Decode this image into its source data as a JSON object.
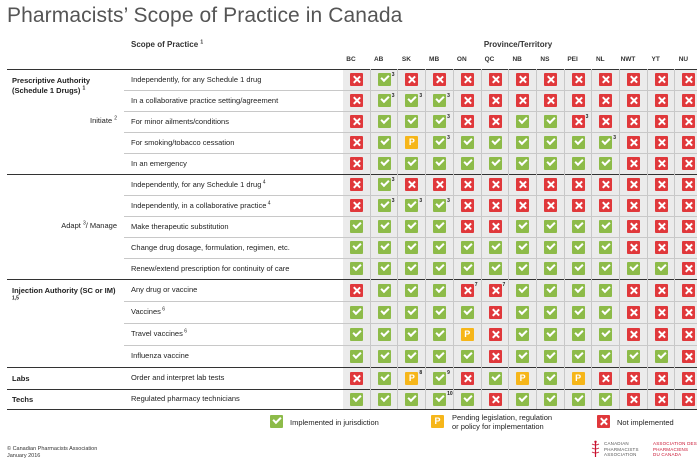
{
  "title": "Pharmacists’ Scope of Practice in Canada",
  "scope_header": "Scope of Practice",
  "scope_header_fn": "1",
  "province_header": "Province/Territory",
  "provinces": [
    "BC",
    "AB",
    "SK",
    "MB",
    "ON",
    "QC",
    "NB",
    "NS",
    "PEI",
    "NL",
    "NWT",
    "YT",
    "NU"
  ],
  "groups": [
    {
      "label": "Prescriptive Authority (Schedule 1 Drugs)",
      "fn": "1"
    },
    {
      "label": "Injection Authority (SC or IM)",
      "fn": "1,5"
    },
    {
      "label": "Labs",
      "fn": ""
    },
    {
      "label": "Techs",
      "fn": ""
    }
  ],
  "sub_groups": [
    {
      "label": "Initiate",
      "fn": "2"
    },
    {
      "label": "Adapt",
      "fn": "3",
      "label2": "/ Manage"
    }
  ],
  "rows": [
    {
      "label": "Independently, for any Schedule 1 drug",
      "fn": "",
      "status": [
        "N",
        "I",
        "N",
        "N",
        "N",
        "N",
        "N",
        "N",
        "N",
        "N",
        "N",
        "N",
        "N"
      ],
      "notes": [
        "",
        "3",
        "",
        "",
        "",
        "",
        "",
        "",
        "",
        "",
        "",
        "",
        ""
      ]
    },
    {
      "label": "In a collaborative practice setting/agreement",
      "fn": "",
      "status": [
        "N",
        "I",
        "I",
        "I",
        "N",
        "N",
        "N",
        "N",
        "N",
        "N",
        "N",
        "N",
        "N"
      ],
      "notes": [
        "",
        "3",
        "3",
        "3",
        "",
        "",
        "",
        "",
        "",
        "",
        "",
        "",
        ""
      ]
    },
    {
      "label": "For minor ailments/conditions",
      "fn": "",
      "status": [
        "N",
        "I",
        "I",
        "I",
        "N",
        "N",
        "I",
        "I",
        "N",
        "N",
        "N",
        "N",
        "N"
      ],
      "notes": [
        "",
        "",
        "",
        "3",
        "",
        "",
        "",
        "",
        "3",
        "",
        "",
        "",
        ""
      ]
    },
    {
      "label": "For smoking/tobacco cessation",
      "fn": "",
      "status": [
        "N",
        "I",
        "P",
        "I",
        "I",
        "I",
        "I",
        "I",
        "I",
        "I",
        "N",
        "N",
        "N"
      ],
      "notes": [
        "",
        "",
        "",
        "3",
        "",
        "",
        "",
        "",
        "",
        "3",
        "",
        "",
        ""
      ]
    },
    {
      "label": "In an emergency",
      "fn": "",
      "status": [
        "N",
        "I",
        "I",
        "I",
        "I",
        "I",
        "I",
        "I",
        "I",
        "I",
        "N",
        "N",
        "N"
      ],
      "notes": [
        "",
        "",
        "",
        "",
        "",
        "",
        "",
        "",
        "",
        "",
        "",
        "",
        ""
      ]
    },
    {
      "label": "Independently, for any Schedule 1 drug",
      "fn": "4",
      "status": [
        "N",
        "I",
        "N",
        "N",
        "N",
        "N",
        "N",
        "N",
        "N",
        "N",
        "N",
        "N",
        "N"
      ],
      "notes": [
        "",
        "3",
        "",
        "",
        "",
        "",
        "",
        "",
        "",
        "",
        "",
        "",
        ""
      ]
    },
    {
      "label": "Independently, in a collaborative practice",
      "fn": "4",
      "status": [
        "N",
        "I",
        "I",
        "I",
        "N",
        "N",
        "N",
        "N",
        "N",
        "N",
        "N",
        "N",
        "N"
      ],
      "notes": [
        "",
        "3",
        "3",
        "3",
        "",
        "",
        "",
        "",
        "",
        "",
        "",
        "",
        ""
      ]
    },
    {
      "label": "Make therapeutic substitution",
      "fn": "",
      "status": [
        "I",
        "I",
        "I",
        "I",
        "N",
        "N",
        "I",
        "I",
        "I",
        "I",
        "N",
        "N",
        "N"
      ],
      "notes": [
        "",
        "",
        "",
        "",
        "",
        "",
        "",
        "",
        "",
        "",
        "",
        "",
        ""
      ]
    },
    {
      "label": "Change drug dosage, formulation, regimen, etc.",
      "fn": "",
      "status": [
        "I",
        "I",
        "I",
        "I",
        "I",
        "I",
        "I",
        "I",
        "I",
        "I",
        "N",
        "N",
        "N"
      ],
      "notes": [
        "",
        "",
        "",
        "",
        "",
        "",
        "",
        "",
        "",
        "",
        "",
        "",
        ""
      ]
    },
    {
      "label": "Renew/extend prescription for continuity of care",
      "fn": "",
      "status": [
        "I",
        "I",
        "I",
        "I",
        "I",
        "I",
        "I",
        "I",
        "I",
        "I",
        "I",
        "I",
        "N"
      ],
      "notes": [
        "",
        "",
        "",
        "",
        "",
        "",
        "",
        "",
        "",
        "",
        "",
        "",
        ""
      ]
    },
    {
      "label": "Any drug or vaccine",
      "fn": "",
      "status": [
        "N",
        "I",
        "I",
        "I",
        "N",
        "N",
        "I",
        "I",
        "I",
        "I",
        "N",
        "N",
        "N"
      ],
      "notes": [
        "",
        "",
        "",
        "",
        "7",
        "7",
        "",
        "",
        "",
        "",
        "",
        "",
        ""
      ]
    },
    {
      "label": "Vaccines",
      "fn": "6",
      "status": [
        "I",
        "I",
        "I",
        "I",
        "I",
        "N",
        "I",
        "I",
        "I",
        "I",
        "N",
        "N",
        "N"
      ],
      "notes": [
        "",
        "",
        "",
        "",
        "",
        "",
        "",
        "",
        "",
        "",
        "",
        "",
        ""
      ]
    },
    {
      "label": "Travel vaccines",
      "fn": "6",
      "status": [
        "I",
        "I",
        "I",
        "I",
        "P",
        "N",
        "I",
        "I",
        "I",
        "I",
        "N",
        "N",
        "N"
      ],
      "notes": [
        "",
        "",
        "",
        "",
        "",
        "",
        "",
        "",
        "",
        "",
        "",
        "",
        ""
      ]
    },
    {
      "label": "Influenza vaccine",
      "fn": "",
      "status": [
        "I",
        "I",
        "I",
        "I",
        "I",
        "N",
        "I",
        "I",
        "I",
        "I",
        "I",
        "I",
        "N"
      ],
      "notes": [
        "",
        "",
        "",
        "",
        "",
        "",
        "",
        "",
        "",
        "",
        "",
        "",
        ""
      ]
    },
    {
      "label": "Order and interpret lab tests",
      "fn": "",
      "status": [
        "N",
        "I",
        "P",
        "I",
        "N",
        "I",
        "P",
        "I",
        "P",
        "N",
        "N",
        "N",
        "N"
      ],
      "notes": [
        "",
        "",
        "8",
        "9",
        "",
        "",
        "",
        "",
        "",
        "",
        "",
        "",
        ""
      ]
    },
    {
      "label": "Regulated pharmacy technicians",
      "fn": "",
      "status": [
        "I",
        "I",
        "I",
        "I",
        "I",
        "N",
        "I",
        "I",
        "I",
        "I",
        "N",
        "N",
        "N"
      ],
      "notes": [
        "",
        "",
        "",
        "10",
        "",
        "",
        "",
        "",
        "",
        "",
        "",
        "",
        ""
      ]
    }
  ],
  "legend": {
    "implemented": "Implemented in jurisdiction",
    "pending_line1": "Pending legislation, regulation",
    "pending_line2": "or policy for implementation",
    "not_implemented": "Not implemented"
  },
  "footer": {
    "line1": "© Canadian Pharmacists Association",
    "line2": "January 2016"
  },
  "logo": {
    "en1": "CANADIAN",
    "en2": "PHARMACISTS",
    "en3": "ASSOCIATION",
    "fr1": "ASSOCIATION DES",
    "fr2": "PHARMACIENS",
    "fr3": "DU CANADA"
  },
  "colors": {
    "implemented": "#8dbb49",
    "pending": "#f6b61a",
    "not_implemented": "#e0383b"
  }
}
